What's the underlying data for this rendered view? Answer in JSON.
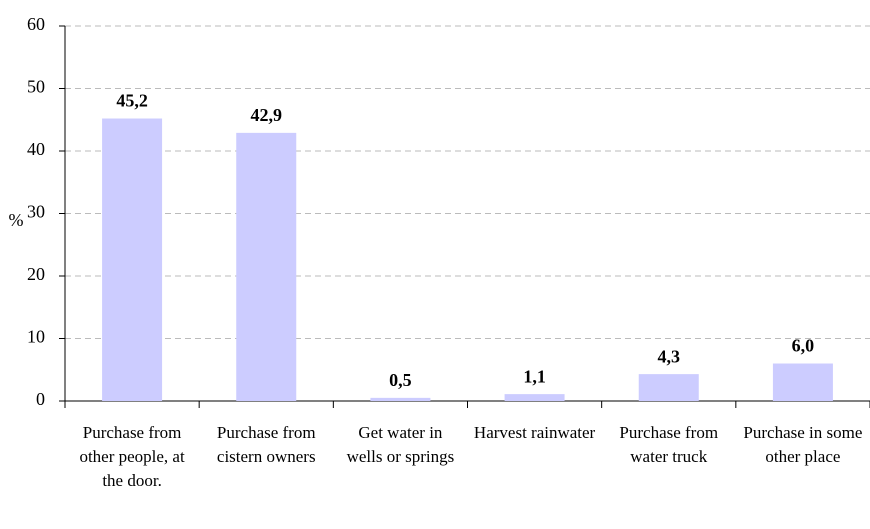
{
  "chart_data": {
    "type": "bar",
    "y_label": "%",
    "categories": [
      "Purchase from other people, at the door.",
      "Purchase from cistern owners",
      "Get water in wells or springs",
      "Harvest rainwater",
      "Purchase from water truck",
      "Purchase in some other place"
    ],
    "values": [
      45.2,
      42.9,
      0.5,
      1.1,
      4.3,
      6.0
    ],
    "value_labels": [
      "45,2",
      "42,9",
      "0,5",
      "1,1",
      "4,3",
      "6,0"
    ],
    "color": "#ccccff",
    "ylim": [
      0,
      60
    ],
    "yticks": [
      0,
      10,
      20,
      30,
      40,
      50,
      60
    ],
    "grid": true
  }
}
